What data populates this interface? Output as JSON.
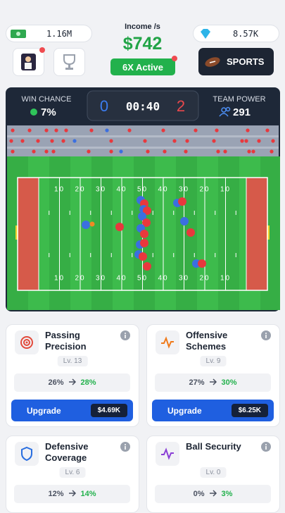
{
  "header": {
    "cash": "1.16M",
    "income_label": "Income /s",
    "income": "$742",
    "boost": "6X Active",
    "gems": "8.57K",
    "sports_button": "SPORTS"
  },
  "scoreboard": {
    "win_chance_label": "WIN CHANCE",
    "win_chance": "7%",
    "score_left": "0",
    "clock": "00:40",
    "score_right": "2",
    "team_power_label": "TEAM POWER",
    "team_power": "291"
  },
  "field": {
    "yard_numbers": [
      "10",
      "20",
      "30",
      "40",
      "50",
      "40",
      "30",
      "20",
      "10"
    ]
  },
  "upgrades": [
    {
      "name": "Passing Precision",
      "level": "Lv. 13",
      "current": "26%",
      "next": "28%",
      "button": "Upgrade",
      "price": "$4.69K"
    },
    {
      "name": "Offensive Schemes",
      "level": "Lv. 9",
      "current": "27%",
      "next": "30%",
      "button": "Upgrade",
      "price": "$6.25K"
    },
    {
      "name": "Defensive Coverage",
      "level": "Lv. 6",
      "current": "12%",
      "next": "14%"
    },
    {
      "name": "Ball Security",
      "level": "Lv. 0",
      "current": "0%",
      "next": "3%"
    }
  ]
}
